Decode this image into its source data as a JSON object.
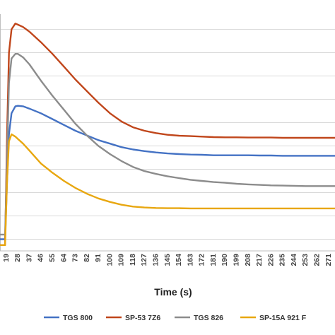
{
  "chart_data": {
    "type": "line",
    "title": "",
    "xlabel": "Time (s)",
    "ylabel": "",
    "grid": "horizontal",
    "legend": "bottom",
    "x_ticks": [
      "19",
      "28",
      "37",
      "46",
      "55",
      "64",
      "73",
      "82",
      "91",
      "100",
      "109",
      "118",
      "127",
      "136",
      "145",
      "154",
      "163",
      "172",
      "181",
      "190",
      "199",
      "208",
      "217",
      "226",
      "235",
      "244",
      "253",
      "262",
      "271"
    ],
    "x_range": [
      14,
      276
    ],
    "y_range": [
      0,
      10
    ],
    "y_tick_values": [
      0.5,
      1.5,
      2.5,
      3.5,
      4.5,
      5.5,
      6.5,
      7.5,
      8.5,
      9.5
    ],
    "series": [
      {
        "name": "TGS 800",
        "color": "#4472C4",
        "x": [
          14,
          18,
          19.5,
          21,
          23,
          26,
          28,
          32,
          37,
          46,
          55,
          64,
          73,
          82,
          91,
          100,
          109,
          118,
          127,
          136,
          145,
          154,
          163,
          172,
          181,
          190,
          199,
          208,
          217,
          226,
          235,
          244,
          253,
          262,
          271,
          276
        ],
        "y": [
          0.5,
          0.5,
          3.0,
          5.0,
          5.9,
          6.2,
          6.22,
          6.2,
          6.1,
          5.9,
          5.65,
          5.4,
          5.15,
          4.95,
          4.75,
          4.6,
          4.45,
          4.35,
          4.28,
          4.22,
          4.18,
          4.15,
          4.13,
          4.12,
          4.1,
          4.1,
          4.1,
          4.1,
          4.09,
          4.09,
          4.08,
          4.08,
          4.08,
          4.08,
          4.08,
          4.08
        ]
      },
      {
        "name": "SP-53 7Z6",
        "color": "#C0461B",
        "x": [
          14,
          18,
          19.5,
          21,
          23,
          26,
          28,
          32,
          37,
          46,
          55,
          64,
          73,
          82,
          91,
          100,
          109,
          118,
          127,
          136,
          145,
          154,
          163,
          172,
          181,
          190,
          199,
          208,
          217,
          226,
          235,
          244,
          253,
          262,
          271,
          276
        ],
        "y": [
          0.25,
          0.25,
          5.0,
          8.5,
          9.5,
          9.75,
          9.7,
          9.6,
          9.4,
          8.95,
          8.45,
          7.9,
          7.35,
          6.85,
          6.35,
          5.9,
          5.55,
          5.3,
          5.15,
          5.05,
          4.98,
          4.94,
          4.92,
          4.9,
          4.88,
          4.87,
          4.87,
          4.86,
          4.86,
          4.86,
          4.85,
          4.85,
          4.85,
          4.85,
          4.85,
          4.85
        ]
      },
      {
        "name": "TGS 826",
        "color": "#8C8C8C",
        "x": [
          14,
          18,
          19.5,
          21,
          23,
          26,
          28,
          32,
          37,
          46,
          55,
          64,
          73,
          82,
          91,
          100,
          109,
          118,
          127,
          136,
          145,
          154,
          163,
          172,
          181,
          190,
          199,
          208,
          217,
          226,
          235,
          244,
          253,
          262,
          271,
          276
        ],
        "y": [
          0.7,
          0.7,
          4.0,
          7.2,
          8.25,
          8.45,
          8.45,
          8.3,
          8.0,
          7.3,
          6.65,
          6.05,
          5.45,
          4.95,
          4.5,
          4.15,
          3.85,
          3.6,
          3.42,
          3.3,
          3.2,
          3.12,
          3.05,
          3.0,
          2.95,
          2.92,
          2.88,
          2.85,
          2.83,
          2.81,
          2.8,
          2.79,
          2.78,
          2.78,
          2.78,
          2.78
        ]
      },
      {
        "name": "SP-15A 921 F",
        "color": "#E8A710",
        "x": [
          14,
          18,
          19.5,
          21,
          23,
          26,
          28,
          32,
          37,
          46,
          55,
          64,
          73,
          82,
          91,
          100,
          109,
          118,
          127,
          136,
          145,
          154,
          163,
          172,
          181,
          190,
          199,
          208,
          217,
          226,
          235,
          244,
          253,
          262,
          271,
          276
        ],
        "y": [
          0.25,
          0.25,
          3.0,
          4.7,
          5.0,
          4.9,
          4.8,
          4.6,
          4.3,
          3.75,
          3.35,
          3.0,
          2.7,
          2.45,
          2.25,
          2.1,
          1.98,
          1.9,
          1.86,
          1.84,
          1.83,
          1.83,
          1.82,
          1.82,
          1.82,
          1.82,
          1.82,
          1.82,
          1.82,
          1.82,
          1.82,
          1.82,
          1.82,
          1.82,
          1.82,
          1.82
        ]
      }
    ]
  }
}
